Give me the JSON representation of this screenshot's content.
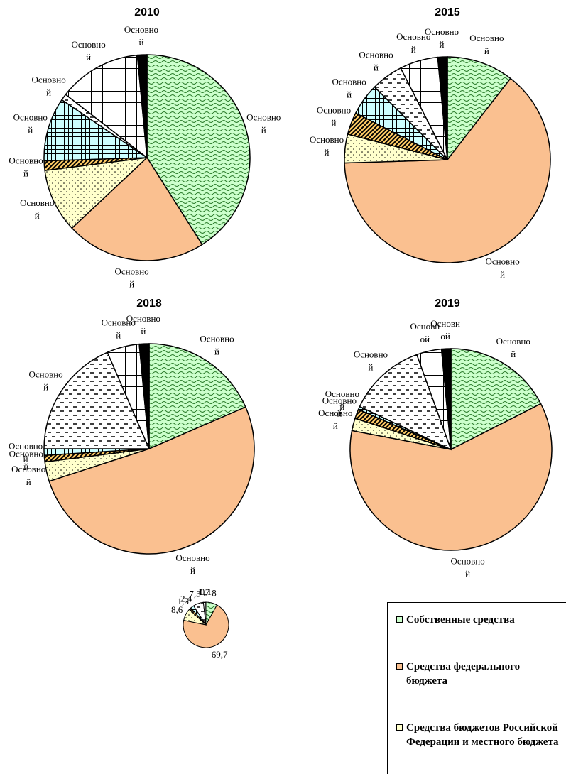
{
  "chart_data": [
    {
      "type": "pie",
      "title": "2010",
      "values": [
        41,
        22,
        10,
        1.5,
        10,
        1,
        13,
        1.5
      ],
      "colors": [
        "#ccffcc",
        "#fac090",
        "#ffffcc",
        "#ffcc66",
        "#ccffff",
        "#ffffff",
        "#ffffff",
        "#000000"
      ],
      "value_labels": [
        [
          "Основно",
          "й"
        ],
        [
          "Основно",
          "й"
        ],
        [
          "Основно",
          "й"
        ],
        [
          "Основно",
          "й"
        ],
        [
          "Основно",
          "й"
        ],
        [
          "Основно",
          "й"
        ],
        [
          "Основно",
          "й"
        ],
        [
          "Основно",
          "й"
        ]
      ]
    },
    {
      "type": "pie",
      "title": "2015",
      "values": [
        10.5,
        64,
        4.5,
        3.5,
        5,
        5,
        6,
        1.5
      ],
      "colors": [
        "#ccffcc",
        "#fac090",
        "#ffffcc",
        "#ffcc66",
        "#ccffff",
        "#ffffff",
        "#ffffff",
        "#000000"
      ],
      "value_labels": [
        [
          "Основно",
          "й"
        ],
        [
          "Основно",
          "й"
        ],
        [
          "Основно",
          "й"
        ],
        [
          "Основно",
          "й"
        ],
        [
          "Основно",
          "й"
        ],
        [
          "Основно",
          "й"
        ],
        [
          "Основно",
          "й"
        ],
        [
          "Основно",
          "й"
        ]
      ]
    },
    {
      "type": "pie",
      "title": "2018",
      "values": [
        18.5,
        51.5,
        3,
        1,
        1,
        18.5,
        5,
        1.5
      ],
      "colors": [
        "#ccffcc",
        "#fac090",
        "#ffffcc",
        "#ffcc66",
        "#ccffff",
        "#ffffff",
        "#ffffff",
        "#000000"
      ],
      "value_labels": [
        [
          "Основно",
          "й"
        ],
        [
          "Основно",
          "й"
        ],
        [
          "Основно",
          "й"
        ],
        [
          "Основно",
          "й"
        ],
        [
          "Основно",
          "й"
        ],
        [
          "Основно",
          "й"
        ],
        [
          "Основно",
          "й"
        ],
        [
          "Основно",
          "й"
        ]
      ]
    },
    {
      "type": "pie",
      "title": "2019",
      "values": [
        17.5,
        60.5,
        2,
        1.5,
        0.5,
        12.5,
        4,
        1.5
      ],
      "colors": [
        "#ccffcc",
        "#fac090",
        "#ffffcc",
        "#ffcc66",
        "#ccffff",
        "#ffffff",
        "#ffffff",
        "#000000"
      ],
      "value_labels": [
        [
          "Основно",
          "й"
        ],
        [
          "Основно",
          "й"
        ],
        [
          "Основно",
          "й"
        ],
        [
          "Основно",
          "й"
        ],
        [
          "Основно",
          "й"
        ],
        [
          "Основно",
          "й"
        ],
        [
          "Основн",
          "ой"
        ],
        [
          "Основн",
          "ой"
        ]
      ]
    },
    {
      "type": "pie",
      "values": [
        8,
        69.7,
        8.6,
        1.5,
        2.4,
        7.3,
        1.7,
        0.1
      ],
      "colors": [
        "#ccffcc",
        "#fac090",
        "#ffffcc",
        "#ffcc66",
        "#ccffff",
        "#ffffff",
        "#ffffff",
        "#000000"
      ],
      "value_labels": [
        [
          "8"
        ],
        [
          "69,7"
        ],
        [
          "8,6"
        ],
        [
          "1,5"
        ],
        [
          "2,4"
        ],
        [
          "7,3"
        ],
        [
          "1,7"
        ],
        [
          "0,1"
        ]
      ]
    }
  ],
  "legend": {
    "items": [
      "Собственные средства",
      "Средства федерального бюджета",
      "Средства бюджетов Российской Федерации и местного бюджета"
    ],
    "colors": [
      "#ccffcc",
      "#fac090",
      "#ffffcc"
    ]
  }
}
